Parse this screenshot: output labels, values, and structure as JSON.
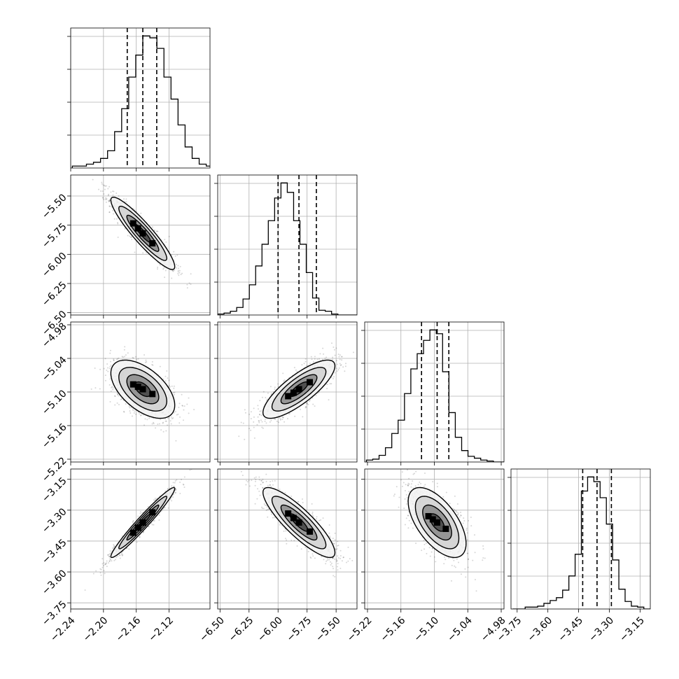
{
  "chart_data": {
    "type": "corner",
    "grid": true,
    "parameters": [
      {
        "name": "",
        "range": [
          -2.24,
          -2.07
        ],
        "ticks": [
          -2.24,
          -2.2,
          -2.16,
          -2.12
        ],
        "tick_labels": [
          "−2.24",
          "−2.20",
          "−2.16",
          "−2.12"
        ],
        "quantiles": [
          -2.171,
          -2.152,
          -2.135
        ]
      },
      {
        "name": "",
        "range": [
          -6.52,
          -5.32
        ],
        "ticks": [
          -6.5,
          -6.25,
          -6.0,
          -5.75,
          -5.5
        ],
        "tick_labels": [
          "−6.50",
          "−6.25",
          "−6.00",
          "−5.75",
          "−5.50"
        ],
        "quantiles": [
          -6.0,
          -5.82,
          -5.67
        ]
      },
      {
        "name": "",
        "range": [
          -5.225,
          -4.975
        ],
        "ticks": [
          -5.22,
          -5.16,
          -5.1,
          -5.04,
          -4.98
        ],
        "tick_labels": [
          "−5.22",
          "−5.16",
          "−5.10",
          "−5.04",
          "−4.98"
        ],
        "quantiles": [
          -5.123,
          -5.095,
          -5.074
        ]
      },
      {
        "name": "",
        "range": [
          -3.78,
          -3.1
        ],
        "ticks": [
          -3.75,
          -3.6,
          -3.45,
          -3.3,
          -3.15
        ],
        "tick_labels": [
          "−3.75",
          "−3.60",
          "−3.45",
          "−3.30",
          "−3.15"
        ],
        "quantiles": [
          -3.43,
          -3.36,
          -3.29
        ]
      }
    ],
    "marginal_histograms": [
      {
        "param": 0,
        "bin_start": -2.238,
        "bin_width": 0.0086,
        "counts": [
          2,
          2,
          4,
          6,
          10,
          18,
          38,
          62,
          95,
          118,
          138,
          136,
          125,
          95,
          72,
          45,
          22,
          10,
          4,
          2,
          1,
          0
        ]
      },
      {
        "param": 1,
        "bin_start": -6.52,
        "bin_width": 0.0545,
        "counts": [
          1,
          2,
          4,
          8,
          17,
          32,
          52,
          75,
          100,
          124,
          140,
          130,
          100,
          75,
          45,
          18,
          5,
          4,
          1,
          0,
          0,
          0
        ]
      },
      {
        "param": 2,
        "bin_start": -5.222,
        "bin_width": 0.0114,
        "counts": [
          2,
          3,
          7,
          15,
          30,
          44,
          72,
          98,
          114,
          128,
          139,
          135,
          95,
          52,
          26,
          12,
          6,
          4,
          2,
          1,
          0,
          0
        ]
      },
      {
        "param": 3,
        "bin_start": -3.772,
        "bin_width": 0.0305,
        "counts": [
          0,
          0,
          2,
          2,
          3,
          6,
          9,
          12,
          20,
          35,
          58,
          125,
          140,
          135,
          118,
          90,
          52,
          21,
          8,
          3,
          2,
          0
        ]
      }
    ],
    "pairs": [
      {
        "x": 0,
        "y": 1,
        "center": [
          -2.152,
          -5.82
        ],
        "sd": [
          0.0195,
          0.155
        ],
        "corr": -0.92
      },
      {
        "x": 0,
        "y": 2,
        "center": [
          -2.152,
          -5.095
        ],
        "sd": [
          0.0195,
          0.026
        ],
        "corr": -0.55
      },
      {
        "x": 1,
        "y": 2,
        "center": [
          -5.82,
          -5.095
        ],
        "sd": [
          0.155,
          0.026
        ],
        "corr": 0.8
      },
      {
        "x": 0,
        "y": 3,
        "center": [
          -2.152,
          -3.36
        ],
        "sd": [
          0.0195,
          0.085
        ],
        "corr": 0.97
      },
      {
        "x": 1,
        "y": 3,
        "center": [
          -5.82,
          -3.36
        ],
        "sd": [
          0.155,
          0.085
        ],
        "corr": -0.86
      },
      {
        "x": 2,
        "y": 3,
        "center": [
          -5.095,
          -3.36
        ],
        "sd": [
          0.026,
          0.085
        ],
        "corr": -0.6
      }
    ],
    "contour_levels_sigma": [
      0.5,
      1.0,
      1.5,
      2.0
    ]
  }
}
